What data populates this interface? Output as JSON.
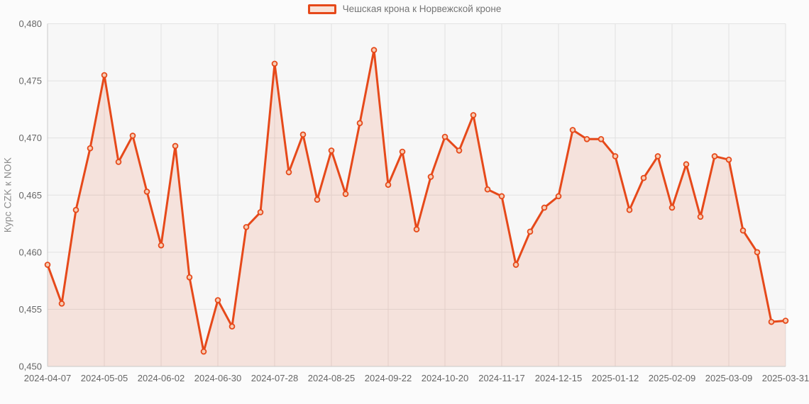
{
  "page": {
    "background": "#fbfbfb"
  },
  "legend": {
    "label": "Чешская крона к Норвежской кроне",
    "swatch_border": "#e6491a",
    "swatch_fill": "#f9e3d8",
    "text_color": "#757575"
  },
  "y_axis": {
    "title": "Курс CZK к NOK",
    "title_color": "#8c8c8c",
    "tick_color": "#666666",
    "tick_labels": [
      "0,450",
      "0,455",
      "0,460",
      "0,465",
      "0,470",
      "0,475",
      "0,480"
    ]
  },
  "x_axis": {
    "tick_color": "#666666",
    "tick_labels": [
      "2024-04-07",
      "2024-05-05",
      "2024-06-02",
      "2024-06-30",
      "2024-07-28",
      "2024-08-25",
      "2024-09-22",
      "2024-10-20",
      "2024-11-17",
      "2024-12-15",
      "2025-01-12",
      "2025-02-09",
      "2025-03-09",
      "2025-03-31"
    ]
  },
  "chart_data": {
    "type": "area",
    "title": "",
    "series_name": "Чешская крона к Норвежской кроне",
    "xlabel": "",
    "ylabel": "Курс CZK к NOK",
    "ylim": [
      0.45,
      0.48
    ],
    "y_ticks": [
      0.45,
      0.455,
      0.46,
      0.465,
      0.47,
      0.475,
      0.48
    ],
    "decimal_separator": ",",
    "grid": true,
    "legend_position": "top-center",
    "x_tick_indices": [
      0,
      4,
      8,
      12,
      16,
      20,
      24,
      28,
      32,
      36,
      40,
      44,
      48,
      52
    ],
    "x": [
      "2024-04-07",
      "2024-04-14",
      "2024-04-21",
      "2024-04-28",
      "2024-05-05",
      "2024-05-12",
      "2024-05-19",
      "2024-05-26",
      "2024-06-02",
      "2024-06-09",
      "2024-06-16",
      "2024-06-23",
      "2024-06-30",
      "2024-07-07",
      "2024-07-14",
      "2024-07-21",
      "2024-07-28",
      "2024-08-04",
      "2024-08-11",
      "2024-08-18",
      "2024-08-25",
      "2024-09-01",
      "2024-09-08",
      "2024-09-15",
      "2024-09-22",
      "2024-09-29",
      "2024-10-06",
      "2024-10-13",
      "2024-10-20",
      "2024-10-27",
      "2024-11-03",
      "2024-11-10",
      "2024-11-17",
      "2024-11-24",
      "2024-12-01",
      "2024-12-08",
      "2024-12-15",
      "2024-12-22",
      "2024-12-29",
      "2025-01-05",
      "2025-01-12",
      "2025-01-19",
      "2025-01-26",
      "2025-02-02",
      "2025-02-09",
      "2025-02-16",
      "2025-02-23",
      "2025-03-02",
      "2025-03-09",
      "2025-03-16",
      "2025-03-23",
      "2025-03-30",
      "2025-03-31"
    ],
    "values": [
      0.4589,
      0.4555,
      0.4637,
      0.4691,
      0.4755,
      0.4679,
      0.4702,
      0.4653,
      0.4606,
      0.4693,
      0.4578,
      0.4513,
      0.4558,
      0.4535,
      0.4622,
      0.4635,
      0.4765,
      0.467,
      0.4703,
      0.4646,
      0.4689,
      0.4651,
      0.4713,
      0.4777,
      0.4659,
      0.4688,
      0.462,
      0.4666,
      0.4701,
      0.4689,
      0.472,
      0.4655,
      0.4649,
      0.4589,
      0.4618,
      0.4639,
      0.4649,
      0.4707,
      0.4699,
      0.4699,
      0.4684,
      0.4637,
      0.4665,
      0.4684,
      0.4639,
      0.4677,
      0.4631,
      0.4684,
      0.4681,
      0.4619,
      0.46,
      0.4539,
      0.454
    ],
    "colors": {
      "line": "#e6491a",
      "fill": "#e6491a",
      "fill_opacity": 0.12,
      "marker_fill": "#f6ceb6",
      "grid": "#e2e2e2",
      "axis_border": "#c9c9c9",
      "plot_bg": "#f7f7f7",
      "tick_text": "#666666"
    }
  }
}
